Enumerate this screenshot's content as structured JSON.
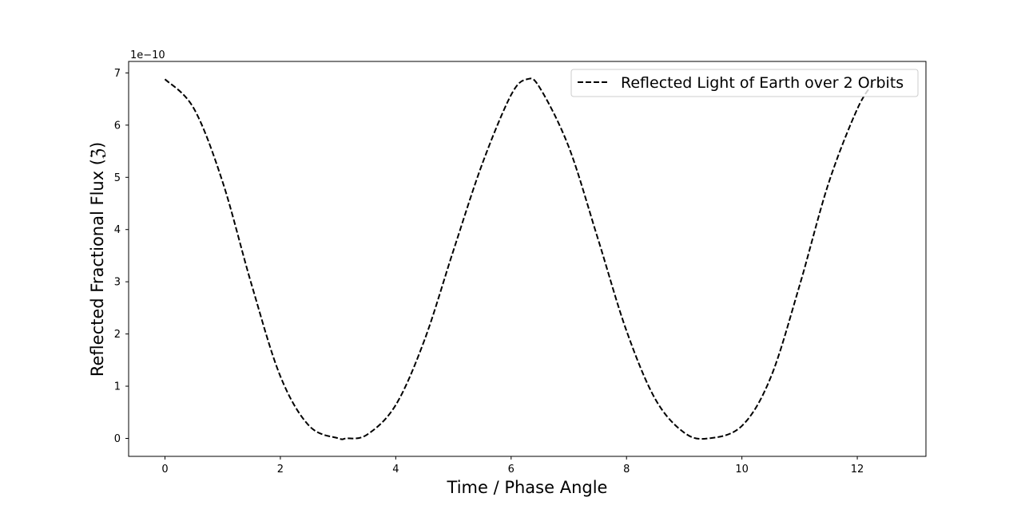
{
  "chart_data": {
    "type": "line",
    "xlabel": "Time / Phase Angle",
    "ylabel": "Reflected Fractional Flux (ℨ)",
    "y_offset_text": "1e−10",
    "xlim": [
      -0.63,
      13.19
    ],
    "ylim": [
      -0.344,
      7.22
    ],
    "y_scale_note": "values shown in units of 1e-10",
    "xticks": [
      0,
      2,
      4,
      6,
      8,
      10,
      12
    ],
    "yticks": [
      0,
      1,
      2,
      3,
      4,
      5,
      6,
      7
    ],
    "xtick_labels": [
      "0",
      "2",
      "4",
      "6",
      "8",
      "10",
      "12"
    ],
    "ytick_labels": [
      "0",
      "1",
      "2",
      "3",
      "4",
      "5",
      "6",
      "7"
    ],
    "grid": false,
    "legend_position": "top-right",
    "series": [
      {
        "name": "Reflected Light of Earth over 2 Orbits",
        "color": "#000000",
        "line_style": "dashed",
        "x": [
          0.0,
          0.5,
          1.0,
          1.5,
          2.0,
          2.5,
          3.0,
          3.14,
          3.5,
          4.0,
          4.5,
          5.0,
          5.5,
          6.0,
          6.28,
          6.5,
          7.0,
          7.5,
          8.0,
          8.5,
          9.0,
          9.42,
          10.0,
          10.5,
          11.0,
          11.5,
          12.0,
          12.3
        ],
        "values": [
          6.88,
          6.32,
          4.91,
          2.95,
          1.19,
          0.24,
          0.003,
          0.0,
          0.07,
          0.64,
          1.89,
          3.6,
          5.26,
          6.58,
          6.88,
          6.71,
          5.58,
          3.84,
          2.06,
          0.75,
          0.11,
          0.0,
          0.24,
          1.17,
          2.93,
          4.88,
          6.31,
          6.84
        ]
      }
    ]
  }
}
